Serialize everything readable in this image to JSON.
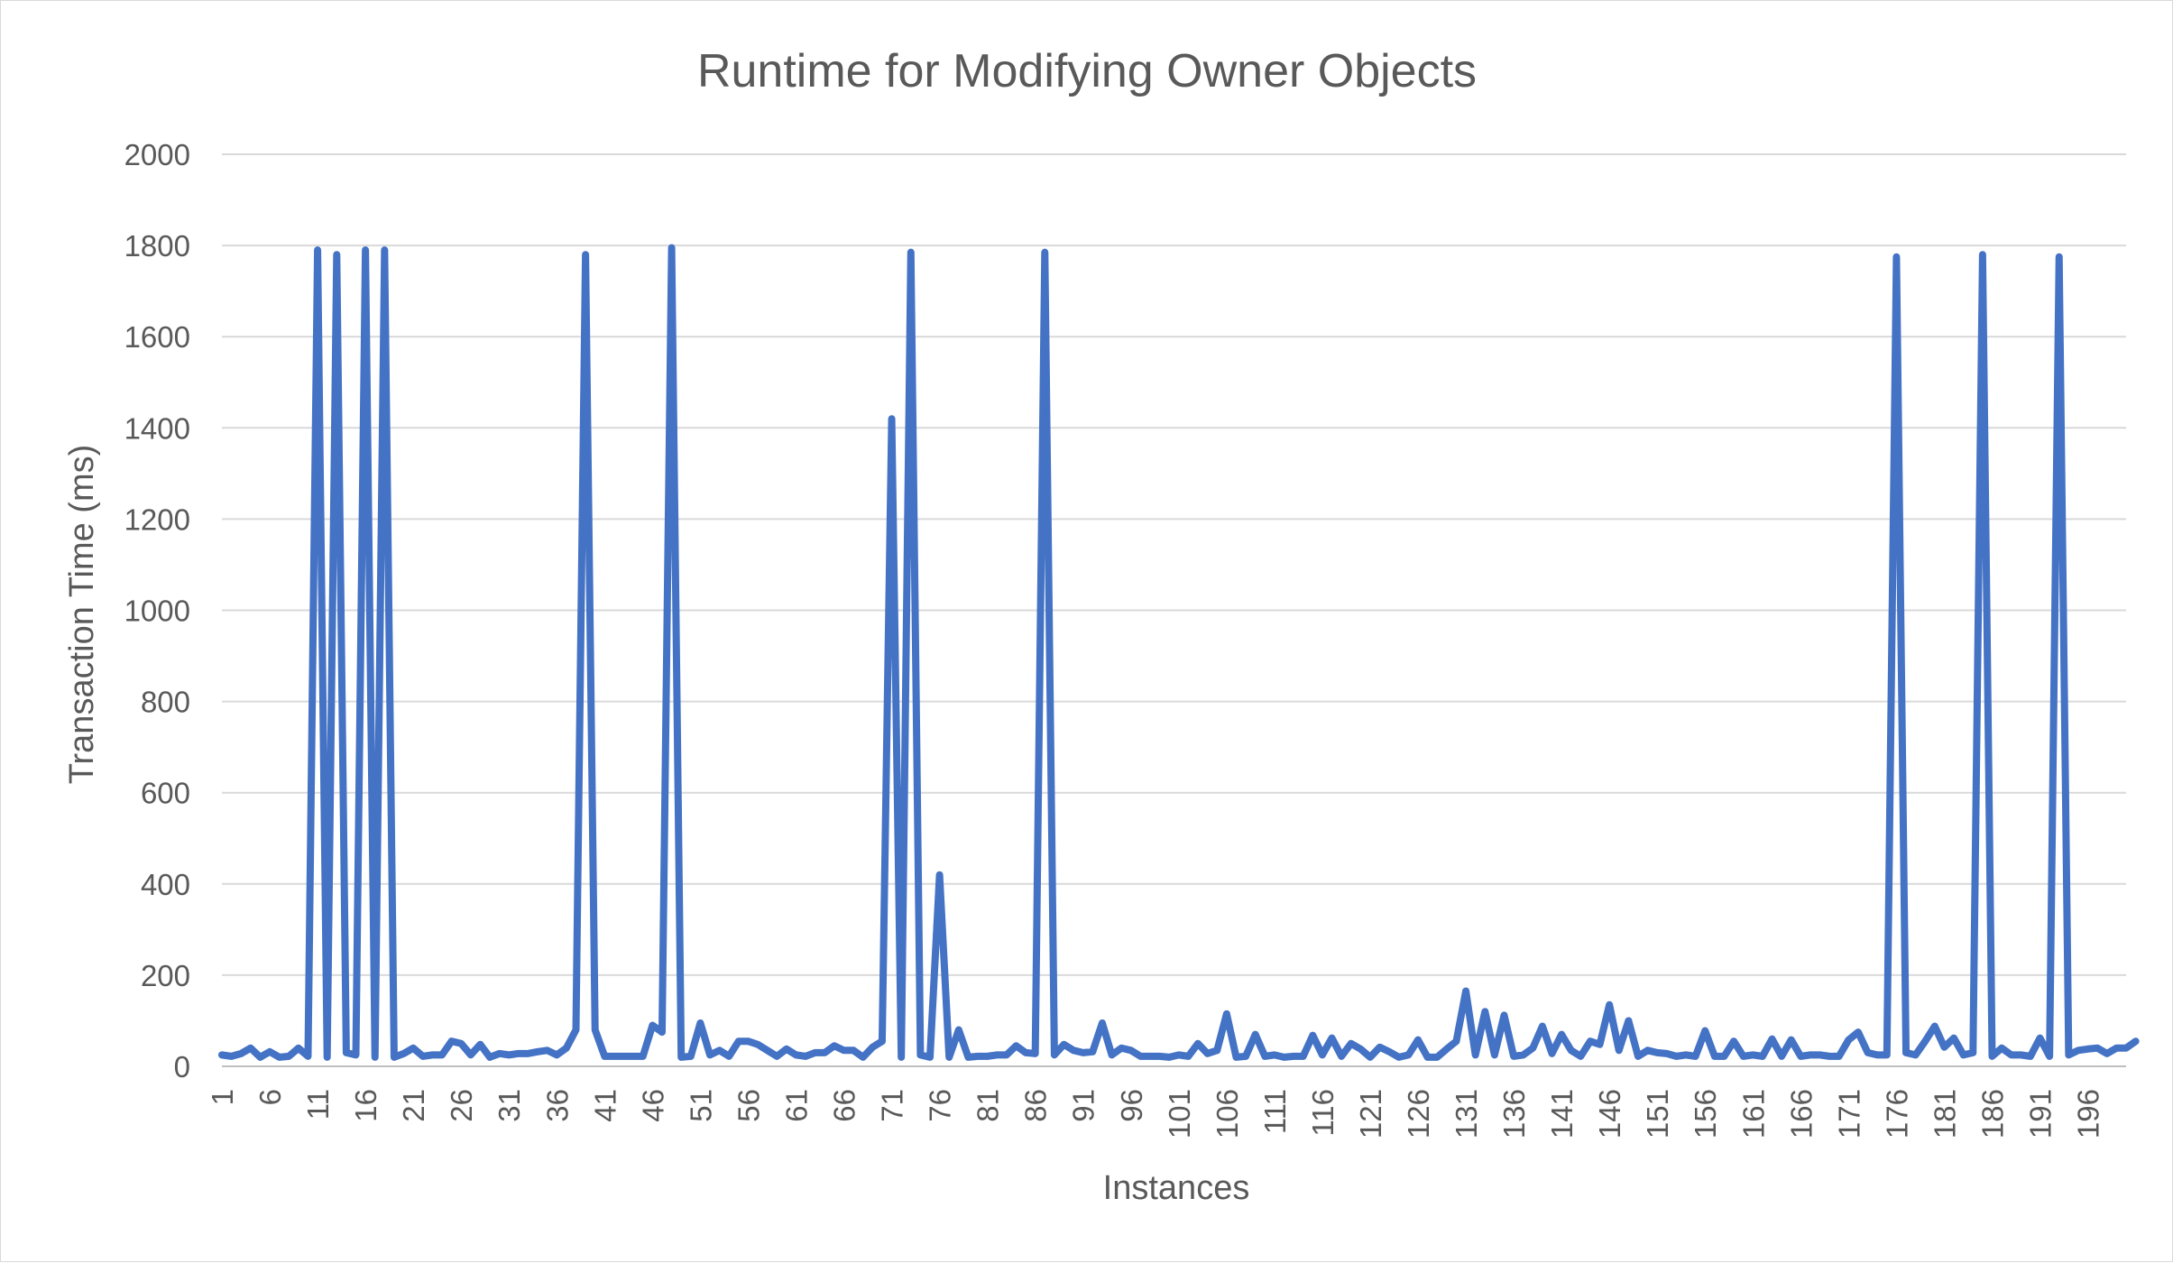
{
  "chart_data": {
    "type": "line",
    "title": "Runtime for Modifying Owner Objects",
    "xlabel": "Instances",
    "ylabel": "Transaction Time (ms)",
    "ylim": [
      0,
      2000
    ],
    "yticks": [
      0,
      200,
      400,
      600,
      800,
      1000,
      1200,
      1400,
      1600,
      1800,
      2000
    ],
    "x_tick_labels": [
      "1",
      "6",
      "11",
      "16",
      "21",
      "26",
      "31",
      "36",
      "41",
      "46",
      "51",
      "56",
      "61",
      "66",
      "71",
      "76",
      "81",
      "86",
      "91",
      "96",
      "101",
      "106",
      "111",
      "116",
      "121",
      "126",
      "131",
      "136",
      "141",
      "146",
      "151",
      "156",
      "161",
      "166",
      "171",
      "176",
      "181",
      "186",
      "191",
      "196"
    ],
    "grid": true,
    "legend": "none",
    "x_range": [
      1,
      200
    ],
    "series": [
      {
        "color": "#4472c4",
        "values": [
          25,
          22,
          28,
          40,
          20,
          32,
          20,
          22,
          40,
          22,
          1790,
          20,
          1780,
          30,
          25,
          1790,
          20,
          1790,
          20,
          28,
          40,
          22,
          25,
          25,
          55,
          50,
          25,
          48,
          20,
          28,
          25,
          28,
          28,
          32,
          35,
          25,
          40,
          80,
          1780,
          80,
          22,
          22,
          22,
          22,
          22,
          90,
          75,
          1795,
          20,
          22,
          95,
          25,
          35,
          22,
          55,
          55,
          48,
          35,
          22,
          38,
          25,
          22,
          30,
          30,
          45,
          35,
          35,
          20,
          42,
          55,
          1420,
          20,
          1785,
          25,
          20,
          420,
          20,
          80,
          20,
          22,
          22,
          25,
          25,
          45,
          30,
          28,
          1785,
          25,
          48,
          35,
          30,
          32,
          95,
          25,
          40,
          35,
          22,
          22,
          22,
          20,
          25,
          22,
          50,
          28,
          35,
          115,
          20,
          22,
          70,
          22,
          25,
          20,
          22,
          22,
          68,
          25,
          62,
          22,
          50,
          38,
          20,
          42,
          32,
          20,
          25,
          58,
          20,
          20,
          38,
          55,
          165,
          25,
          120,
          25,
          112,
          22,
          25,
          40,
          88,
          28,
          70,
          35,
          22,
          55,
          48,
          135,
          35,
          100,
          22,
          35,
          30,
          28,
          22,
          25,
          22,
          78,
          22,
          22,
          55,
          22,
          25,
          22,
          60,
          22,
          58,
          22,
          25,
          25,
          22,
          22,
          58,
          75,
          30,
          25,
          25,
          1775,
          30,
          25,
          55,
          88,
          42,
          62,
          25,
          30,
          1780,
          22,
          40,
          25,
          25,
          22,
          62,
          22,
          1775,
          25,
          35,
          38,
          40,
          28,
          40,
          40,
          55
        ]
      }
    ]
  }
}
